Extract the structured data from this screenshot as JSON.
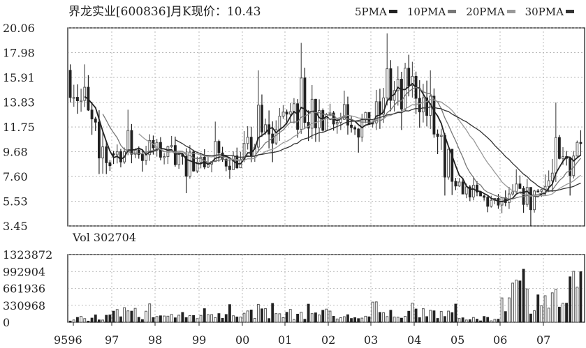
{
  "header": {
    "title": "界龙实业[600836]月K现价：10.43",
    "ma_legend": [
      {
        "label": "5PMA",
        "color": "#222222"
      },
      {
        "label": "10PMA",
        "color": "#777777"
      },
      {
        "label": "20PMA",
        "color": "#999999"
      },
      {
        "label": "30PMA",
        "color": "#333333"
      }
    ]
  },
  "volume_panel": {
    "label": "Vol 302704"
  },
  "colors": {
    "up": "#555555",
    "down": "#222222",
    "grid": "#aaaaaa",
    "frame": "#222222"
  },
  "chart_data": [
    {
      "type": "candlestick",
      "title": "界龙实业[600836]月K现价：10.43",
      "current_price": 10.43,
      "ylim": [
        3.45,
        20.06
      ],
      "yticks": [
        "20.06",
        "17.98",
        "15.91",
        "13.83",
        "11.75",
        "9.68",
        "7.60",
        "5.53",
        "3.45"
      ],
      "xticks": [
        "9596",
        "97",
        "98",
        "99",
        "00",
        "01",
        "02",
        "03",
        "04",
        "05",
        "06",
        "07"
      ],
      "grid": true,
      "series_names": [
        "5PMA",
        "10PMA",
        "20PMA",
        "30PMA"
      ],
      "yearly_ohlc": [
        {
          "year": "95-96",
          "open": 16.5,
          "high": 17.0,
          "low": 7.8,
          "close": 8.5
        },
        {
          "year": "97",
          "open": 9.5,
          "high": 13.2,
          "low": 8.0,
          "close": 10.0
        },
        {
          "year": "98",
          "open": 9.8,
          "high": 11.0,
          "low": 6.2,
          "close": 8.8
        },
        {
          "year": "99",
          "open": 8.8,
          "high": 12.2,
          "low": 7.4,
          "close": 9.0
        },
        {
          "year": "00",
          "open": 9.0,
          "high": 16.5,
          "low": 8.8,
          "close": 13.0
        },
        {
          "year": "01",
          "open": 13.0,
          "high": 18.8,
          "low": 10.5,
          "close": 12.8
        },
        {
          "year": "02",
          "open": 12.8,
          "high": 14.8,
          "low": 9.6,
          "close": 12.0
        },
        {
          "year": "03",
          "open": 12.0,
          "high": 19.6,
          "low": 11.5,
          "close": 16.0
        },
        {
          "year": "04",
          "open": 16.0,
          "high": 16.5,
          "low": 6.0,
          "close": 6.8
        },
        {
          "year": "05",
          "open": 6.8,
          "high": 7.6,
          "low": 4.6,
          "close": 5.2
        },
        {
          "year": "06",
          "open": 5.2,
          "high": 8.2,
          "low": 3.45,
          "close": 6.5
        },
        {
          "year": "07",
          "open": 6.5,
          "high": 13.8,
          "low": 6.0,
          "close": 10.43
        }
      ]
    },
    {
      "type": "bar",
      "title": "Vol 302704",
      "current_volume": 302704,
      "ylim": [
        0,
        1323872
      ],
      "yticks": [
        "1323872",
        "992904",
        "661936",
        "330968",
        "0"
      ],
      "xticks": [
        "9596",
        "97",
        "98",
        "99",
        "00",
        "01",
        "02",
        "03",
        "04",
        "05",
        "06",
        "07"
      ],
      "grid": true,
      "yearly_peak_volume": [
        {
          "year": "95-96",
          "peak": 150000
        },
        {
          "year": "97",
          "peak": 380000
        },
        {
          "year": "98",
          "peak": 300000
        },
        {
          "year": "99",
          "peak": 440000
        },
        {
          "year": "00",
          "peak": 400000
        },
        {
          "year": "01",
          "peak": 390000
        },
        {
          "year": "02",
          "peak": 250000
        },
        {
          "year": "03",
          "peak": 400000
        },
        {
          "year": "04",
          "peak": 400000
        },
        {
          "year": "05",
          "peak": 140000
        },
        {
          "year": "06",
          "peak": 1323872
        },
        {
          "year": "07",
          "peak": 1080000
        }
      ]
    }
  ]
}
